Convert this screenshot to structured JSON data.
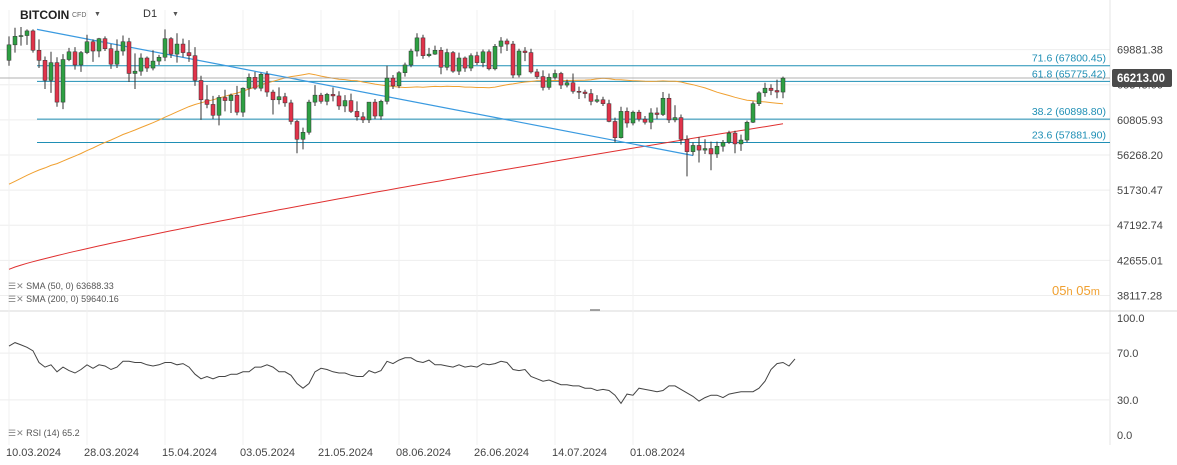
{
  "header": {
    "symbol": "BITCOIN",
    "symbol_type": "CFD",
    "timeframe": "D1",
    "caret": "▼"
  },
  "timer": {
    "hours": "05",
    "h": "h",
    "minutes": "05",
    "m": "m"
  },
  "indicators": {
    "sma50": {
      "label": "SMA (50, 0)",
      "value": "63688.33",
      "color": "#f0a030"
    },
    "sma200": {
      "label": "SMA (200, 0)",
      "value": "59640.16",
      "color": "#e03030"
    },
    "rsi": {
      "label": "RSI (14)",
      "value": "65.2",
      "color": "#444444"
    }
  },
  "colors": {
    "up": "#2ea043",
    "down": "#e0334a",
    "fib": "#1f8fb5",
    "trendline": "#3a9ae0",
    "price_badge": "#4a4a4a"
  },
  "chart_data": [
    {
      "type": "candlestick",
      "ylim": [
        36500,
        75000
      ],
      "y_ticks": [
        38117.28,
        42655.01,
        47192.74,
        51730.47,
        56268.2,
        60805.93,
        65343.66,
        69881.38
      ],
      "x_tick_labels": [
        "10.03.2024",
        "28.03.2024",
        "15.04.2024",
        "03.05.2024",
        "21.05.2024",
        "08.06.2024",
        "26.06.2024",
        "14.07.2024",
        "01.08.2024"
      ],
      "last_price": "66213.00",
      "fib_levels": [
        {
          "label": "71.6 (67800.45)",
          "value": 67800.45
        },
        {
          "label": "61.8 (65775.42)",
          "value": 65775.42
        },
        {
          "label": "38.2 (60898.80)",
          "value": 60898.8
        },
        {
          "label": "23.6 (57881.90)",
          "value": 57881.9
        }
      ],
      "ohlc": [
        [
          68500,
          71600,
          67800,
          70500
        ],
        [
          70500,
          72700,
          69500,
          71600
        ],
        [
          71600,
          72800,
          70400,
          71700
        ],
        [
          71700,
          72500,
          70500,
          72300
        ],
        [
          72300,
          72500,
          69500,
          69800
        ],
        [
          69800,
          71200,
          67500,
          68500
        ],
        [
          68500,
          69000,
          64800,
          65900
        ],
        [
          65900,
          69600,
          64300,
          68200
        ],
        [
          68200,
          68900,
          62500,
          63100
        ],
        [
          63100,
          69300,
          62200,
          68600
        ],
        [
          68600,
          70100,
          68400,
          69600
        ],
        [
          69600,
          70200,
          67300,
          67900
        ],
        [
          67900,
          69700,
          67000,
          69500
        ],
        [
          69500,
          71800,
          69300,
          70900
        ],
        [
          70900,
          71200,
          68300,
          69700
        ],
        [
          69700,
          71400,
          68900,
          71300
        ],
        [
          71300,
          71600,
          69700,
          70000
        ],
        [
          70000,
          70600,
          67400,
          68000
        ],
        [
          68000,
          71200,
          67500,
          69700
        ],
        [
          69700,
          71700,
          69100,
          70900
        ],
        [
          70900,
          71400,
          65700,
          66800
        ],
        [
          66800,
          69400,
          64800,
          67100
        ],
        [
          67100,
          69400,
          66500,
          68800
        ],
        [
          68800,
          69000,
          67000,
          67500
        ],
        [
          67500,
          69800,
          67200,
          68400
        ],
        [
          68400,
          69200,
          67900,
          68900
        ],
        [
          68900,
          72500,
          68400,
          71300
        ],
        [
          71300,
          71500,
          68800,
          69300
        ],
        [
          69300,
          72000,
          68200,
          70600
        ],
        [
          70600,
          71300,
          68900,
          69500
        ],
        [
          69500,
          71100,
          68300,
          69100
        ],
        [
          69100,
          70200,
          65200,
          65900
        ],
        [
          65900,
          66500,
          60800,
          63400
        ],
        [
          63400,
          65300,
          62300,
          62800
        ],
        [
          62800,
          63900,
          60900,
          61400
        ],
        [
          61400,
          64000,
          60100,
          63700
        ],
        [
          63700,
          64700,
          61900,
          63300
        ],
        [
          63300,
          64200,
          61700,
          64000
        ],
        [
          64000,
          65200,
          61400,
          61800
        ],
        [
          61800,
          65000,
          61200,
          64900
        ],
        [
          64900,
          66800,
          63800,
          66300
        ],
        [
          66300,
          67000,
          64700,
          64900
        ],
        [
          64900,
          66900,
          64500,
          66700
        ],
        [
          66700,
          67100,
          63800,
          64400
        ],
        [
          64400,
          64700,
          61500,
          63400
        ],
        [
          63400,
          65000,
          62800,
          63800
        ],
        [
          63800,
          64300,
          62500,
          63000
        ],
        [
          63000,
          63400,
          60200,
          60600
        ],
        [
          60600,
          60800,
          56500,
          58300
        ],
        [
          58300,
          59800,
          57000,
          59200
        ],
        [
          59200,
          63400,
          58900,
          63100
        ],
        [
          63100,
          65300,
          62600,
          64000
        ],
        [
          64000,
          64300,
          62900,
          63200
        ],
        [
          63200,
          64300,
          62700,
          64100
        ],
        [
          64100,
          65000,
          63200,
          63900
        ],
        [
          63900,
          64500,
          62100,
          62600
        ],
        [
          62600,
          64000,
          61800,
          63300
        ],
        [
          63300,
          64200,
          61700,
          61900
        ],
        [
          61900,
          63200,
          60700,
          61200
        ],
        [
          61200,
          61800,
          60400,
          60800
        ],
        [
          60800,
          63100,
          60400,
          63100
        ],
        [
          63100,
          63500,
          60900,
          61300
        ],
        [
          61300,
          63400,
          60800,
          63200
        ],
        [
          63200,
          67800,
          62800,
          66200
        ],
        [
          66200,
          66600,
          64800,
          65200
        ],
        [
          65200,
          67100,
          64900,
          66900
        ],
        [
          66900,
          68200,
          66400,
          67900
        ],
        [
          67900,
          70000,
          67600,
          69700
        ],
        [
          69700,
          72000,
          69000,
          71400
        ],
        [
          71400,
          71800,
          68700,
          69100
        ],
        [
          69100,
          70100,
          68900,
          69300
        ],
        [
          69300,
          70400,
          69200,
          69800
        ],
        [
          69800,
          70200,
          66700,
          67600
        ],
        [
          67600,
          70000,
          67200,
          69500
        ],
        [
          69500,
          69700,
          66900,
          67100
        ],
        [
          67100,
          69500,
          66600,
          68800
        ],
        [
          68800,
          69000,
          67000,
          67500
        ],
        [
          67500,
          69400,
          67100,
          69100
        ],
        [
          69100,
          69600,
          67900,
          68200
        ],
        [
          68200,
          69900,
          67600,
          69600
        ],
        [
          69600,
          69900,
          67200,
          67400
        ],
        [
          67400,
          70600,
          67200,
          70300
        ],
        [
          70300,
          71500,
          69400,
          71000
        ],
        [
          71000,
          71300,
          69700,
          70600
        ],
        [
          70600,
          71000,
          66200,
          66600
        ],
        [
          66600,
          70000,
          66300,
          69700
        ],
        [
          69700,
          70200,
          68400,
          69500
        ],
        [
          69500,
          70000,
          66800,
          67000
        ],
        [
          67000,
          67400,
          66100,
          66400
        ],
        [
          66400,
          67200,
          64600,
          65000
        ],
        [
          65000,
          66800,
          64700,
          66300
        ],
        [
          66300,
          67300,
          66000,
          66800
        ],
        [
          66800,
          67000,
          64800,
          65300
        ],
        [
          65300,
          66000,
          65000,
          65600
        ],
        [
          65600,
          66800,
          64200,
          64500
        ],
        [
          64500,
          65100,
          63500,
          64400
        ],
        [
          64400,
          64700,
          63600,
          64200
        ],
        [
          64200,
          64800,
          62700,
          63200
        ],
        [
          63200,
          64000,
          63000,
          63400
        ],
        [
          63400,
          63800,
          62600,
          62900
        ],
        [
          62900,
          63400,
          60500,
          60600
        ],
        [
          60600,
          61100,
          57900,
          58500
        ],
        [
          58500,
          62500,
          58400,
          61900
        ],
        [
          61900,
          62400,
          59800,
          60400
        ],
        [
          60400,
          62000,
          60100,
          61800
        ],
        [
          61800,
          62100,
          60600,
          60900
        ],
        [
          60900,
          61300,
          60200,
          60500
        ],
        [
          60500,
          62300,
          59600,
          61700
        ],
        [
          61700,
          62400,
          60900,
          61500
        ],
        [
          61500,
          64400,
          61300,
          63600
        ],
        [
          63600,
          64200,
          60400,
          60800
        ],
        [
          60800,
          62700,
          60500,
          61100
        ],
        [
          61100,
          61500,
          57600,
          58300
        ],
        [
          58300,
          58800,
          53500,
          56700
        ],
        [
          56700,
          57900,
          56200,
          57500
        ],
        [
          57500,
          58600,
          55300,
          56900
        ],
        [
          56900,
          58300,
          56400,
          57100
        ],
        [
          57100,
          58000,
          54300,
          56400
        ],
        [
          56400,
          58000,
          55900,
          57400
        ],
        [
          57400,
          58200,
          56700,
          57900
        ],
        [
          57900,
          59400,
          57700,
          59100
        ],
        [
          59100,
          59400,
          56500,
          57700
        ],
        [
          57700,
          58900,
          56800,
          58200
        ],
        [
          58200,
          60700,
          57900,
          60500
        ],
        [
          60500,
          63200,
          60400,
          62900
        ],
        [
          62900,
          64500,
          62600,
          64300
        ],
        [
          64300,
          65600,
          63800,
          64900
        ],
        [
          64900,
          65400,
          64000,
          64600
        ],
        [
          64600,
          66000,
          63600,
          64400
        ],
        [
          64400,
          66400,
          63600,
          66200
        ]
      ]
    },
    {
      "type": "line",
      "title": "RSI (14)",
      "ylim": [
        0,
        100
      ],
      "y_ticks": [
        0.0,
        30.0,
        70.0,
        100.0
      ],
      "values": [
        76,
        79,
        77,
        75,
        72,
        62,
        58,
        60,
        54,
        58,
        55,
        53,
        56,
        60,
        57,
        60,
        59,
        56,
        58,
        63,
        63,
        62,
        62,
        60,
        59,
        60,
        62,
        62,
        60,
        61,
        58,
        52,
        48,
        50,
        48,
        50,
        50,
        52,
        52,
        54,
        54,
        58,
        58,
        60,
        58,
        54,
        54,
        51,
        44,
        40,
        44,
        54,
        57,
        56,
        54,
        53,
        53,
        51,
        50,
        50,
        55,
        53,
        55,
        63,
        61,
        64,
        66,
        66,
        63,
        62,
        64,
        60,
        60,
        59,
        58,
        60,
        58,
        59,
        58,
        61,
        60,
        61,
        63,
        62,
        56,
        55,
        56,
        50,
        48,
        46,
        47,
        45,
        43,
        43,
        42,
        42,
        40,
        40,
        38,
        39,
        38,
        34,
        27,
        35,
        34,
        40,
        39,
        38,
        37,
        38,
        42,
        42,
        39,
        36,
        33,
        29,
        32,
        34,
        34,
        32,
        35,
        36,
        37,
        37,
        37,
        40,
        46,
        56,
        61,
        62,
        59,
        65
      ]
    }
  ]
}
